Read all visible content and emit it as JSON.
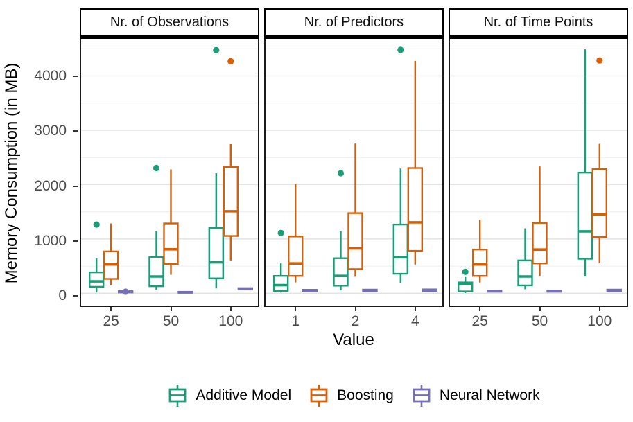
{
  "chart_data": {
    "type": "boxplot",
    "xlabel": "Value",
    "ylabel": "Memory Consumption (in MB)",
    "ylim": [
      -200,
      4670
    ],
    "yticks": [
      0,
      1000,
      2000,
      3000,
      4000
    ],
    "yticks_minor": [
      500,
      1500,
      2500,
      3500,
      4500
    ],
    "grid": "on",
    "legend_position": "bottom",
    "series": [
      {
        "name": "Additive Model",
        "color": "#1B9E77"
      },
      {
        "name": "Boosting",
        "color": "#D95F02"
      },
      {
        "name": "Neural Network",
        "color": "#7570B3"
      }
    ],
    "panels": [
      {
        "label": "Nr. of Observations",
        "categories": [
          "25",
          "50",
          "100"
        ],
        "boxes": [
          {
            "group": 0,
            "series": 0,
            "low": 15,
            "q1": 120,
            "med": 220,
            "q3": 385,
            "high": 645,
            "outliers": [
              1265
            ]
          },
          {
            "group": 0,
            "series": 1,
            "low": 145,
            "q1": 265,
            "med": 530,
            "q3": 770,
            "high": 1285,
            "outliers": []
          },
          {
            "group": 0,
            "series": 2,
            "low": 8,
            "q1": 15,
            "med": 28,
            "q3": 40,
            "high": 48,
            "outliers": [
              30
            ]
          },
          {
            "group": 1,
            "series": 0,
            "low": 65,
            "q1": 130,
            "med": 310,
            "q3": 670,
            "high": 1145,
            "outliers": [
              2305
            ]
          },
          {
            "group": 1,
            "series": 1,
            "low": 340,
            "q1": 540,
            "med": 810,
            "q3": 1285,
            "high": 2280,
            "outliers": []
          },
          {
            "group": 1,
            "series": 2,
            "low": 5,
            "q1": 10,
            "med": 18,
            "q3": 28,
            "high": 35,
            "outliers": []
          },
          {
            "group": 2,
            "series": 0,
            "low": 90,
            "q1": 275,
            "med": 570,
            "q3": 1200,
            "high": 2210,
            "outliers": [
              4475
            ]
          },
          {
            "group": 2,
            "series": 1,
            "low": 605,
            "q1": 1055,
            "med": 1510,
            "q3": 2325,
            "high": 2745,
            "outliers": [
              4270
            ]
          },
          {
            "group": 2,
            "series": 2,
            "low": 60,
            "q1": 70,
            "med": 82,
            "q3": 95,
            "high": 105,
            "outliers": []
          }
        ]
      },
      {
        "label": "Nr. of Predictors",
        "categories": [
          "1",
          "2",
          "4"
        ],
        "boxes": [
          {
            "group": 0,
            "series": 0,
            "low": 15,
            "q1": 45,
            "med": 150,
            "q3": 320,
            "high": 550,
            "outliers": [
              1110
            ]
          },
          {
            "group": 0,
            "series": 1,
            "low": 200,
            "q1": 320,
            "med": 550,
            "q3": 1045,
            "high": 2005,
            "outliers": []
          },
          {
            "group": 0,
            "series": 2,
            "low": 20,
            "q1": 32,
            "med": 48,
            "q3": 65,
            "high": 78,
            "outliers": []
          },
          {
            "group": 1,
            "series": 0,
            "low": 55,
            "q1": 140,
            "med": 320,
            "q3": 645,
            "high": 1140,
            "outliers": [
              2210
            ]
          },
          {
            "group": 1,
            "series": 1,
            "low": 305,
            "q1": 445,
            "med": 825,
            "q3": 1475,
            "high": 2755,
            "outliers": []
          },
          {
            "group": 1,
            "series": 2,
            "low": 25,
            "q1": 38,
            "med": 52,
            "q3": 68,
            "high": 80,
            "outliers": []
          },
          {
            "group": 2,
            "series": 0,
            "low": 195,
            "q1": 360,
            "med": 665,
            "q3": 1265,
            "high": 2295,
            "outliers": [
              4480
            ]
          },
          {
            "group": 2,
            "series": 1,
            "low": 530,
            "q1": 780,
            "med": 1305,
            "q3": 2305,
            "high": 4275,
            "outliers": []
          },
          {
            "group": 2,
            "series": 2,
            "low": 30,
            "q1": 42,
            "med": 58,
            "q3": 72,
            "high": 85,
            "outliers": []
          }
        ]
      },
      {
        "label": "Nr. of Time Points",
        "categories": [
          "25",
          "50",
          "100"
        ],
        "boxes": [
          {
            "group": 0,
            "series": 0,
            "low": 5,
            "q1": 35,
            "med": 170,
            "q3": 200,
            "high": 300,
            "outliers": [
              395
            ]
          },
          {
            "group": 0,
            "series": 1,
            "low": 200,
            "q1": 320,
            "med": 530,
            "q3": 805,
            "high": 1350,
            "outliers": []
          },
          {
            "group": 0,
            "series": 2,
            "low": 18,
            "q1": 28,
            "med": 40,
            "q3": 52,
            "high": 62,
            "outliers": []
          },
          {
            "group": 1,
            "series": 0,
            "low": 75,
            "q1": 145,
            "med": 310,
            "q3": 605,
            "high": 1195,
            "outliers": []
          },
          {
            "group": 1,
            "series": 1,
            "low": 320,
            "q1": 550,
            "med": 805,
            "q3": 1295,
            "high": 2335,
            "outliers": []
          },
          {
            "group": 1,
            "series": 2,
            "low": 18,
            "q1": 28,
            "med": 40,
            "q3": 52,
            "high": 62,
            "outliers": []
          },
          {
            "group": 2,
            "series": 0,
            "low": 310,
            "q1": 635,
            "med": 1140,
            "q3": 2220,
            "high": 4490,
            "outliers": []
          },
          {
            "group": 2,
            "series": 1,
            "low": 550,
            "q1": 1035,
            "med": 1455,
            "q3": 2285,
            "high": 2750,
            "outliers": [
              4285
            ]
          },
          {
            "group": 2,
            "series": 2,
            "low": 25,
            "q1": 38,
            "med": 52,
            "q3": 68,
            "high": 80,
            "outliers": []
          }
        ]
      }
    ],
    "colors": {
      "grid_major": "#e3e3e3",
      "grid_minor": "#f0f0f0",
      "panel_border": "#1a1a1a",
      "tick_label": "#4d4d4d",
      "axis_title": "#000000",
      "strip_text": "#111111"
    }
  }
}
